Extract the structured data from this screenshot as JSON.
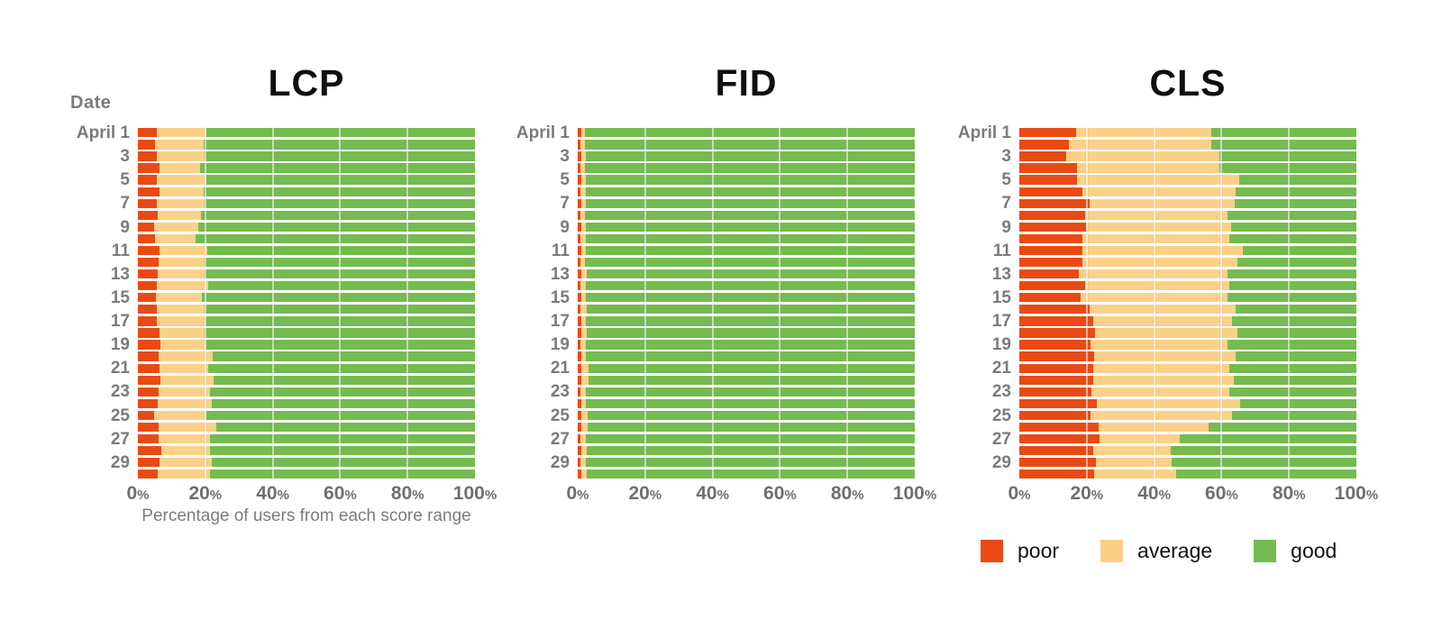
{
  "date_header": "Date",
  "axis": {
    "ticks": [
      "0",
      "20",
      "40",
      "60",
      "80",
      "100"
    ],
    "suffix": "%",
    "caption": "Percentage of users from each score range"
  },
  "legend": {
    "position": "bottom-right",
    "items": [
      {
        "label": "poor",
        "color": "#E94A13"
      },
      {
        "label": "average",
        "color": "#FBD189"
      },
      {
        "label": "good",
        "color": "#74BB50"
      }
    ]
  },
  "chart_data": [
    {
      "type": "bar",
      "stacked": true,
      "orientation": "horizontal",
      "title": "LCP",
      "xlabel": "Percentage of users from each score range",
      "ylabel": "Date",
      "xlim": [
        0,
        100
      ],
      "xticks": [
        0,
        20,
        40,
        60,
        80,
        100
      ],
      "grid": true,
      "categories": [
        "April 1",
        "",
        "3",
        "",
        "5",
        "",
        "7",
        "",
        "9",
        "",
        "11",
        "",
        "13",
        "",
        "15",
        "",
        "17",
        "",
        "19",
        "",
        "21",
        "",
        "23",
        "",
        "25",
        "",
        "27",
        "",
        "29",
        ""
      ],
      "series": [
        {
          "name": "poor",
          "values": [
            5.7,
            5.2,
            5.7,
            6.5,
            5.7,
            6.3,
            5.5,
            5.8,
            4.9,
            5.2,
            6.5,
            6.1,
            5.8,
            5.7,
            5.3,
            5.5,
            5.7,
            6.5,
            6.8,
            6.1,
            6.5,
            6.8,
            6.1,
            5.8,
            4.9,
            6.1,
            6.1,
            7.0,
            6.3,
            5.8
          ]
        },
        {
          "name": "average",
          "values": [
            14.7,
            14.3,
            14.2,
            11.9,
            14.7,
            13.2,
            14.4,
            13.0,
            13.0,
            11.9,
            14.1,
            13.6,
            14.1,
            15.1,
            13.7,
            14.4,
            14.4,
            13.4,
            13.3,
            16.1,
            14.3,
            15.6,
            15.2,
            16.1,
            15.5,
            17.1,
            15.2,
            14.4,
            15.6,
            15.5
          ]
        },
        {
          "name": "good",
          "values": [
            79.6,
            80.5,
            80.1,
            81.6,
            79.6,
            80.5,
            80.1,
            81.2,
            82.1,
            82.9,
            79.4,
            80.3,
            80.1,
            79.2,
            81.0,
            80.1,
            79.9,
            80.1,
            79.9,
            77.8,
            79.2,
            77.6,
            78.7,
            78.1,
            79.6,
            76.8,
            78.7,
            78.6,
            78.1,
            78.7
          ]
        }
      ]
    },
    {
      "type": "bar",
      "stacked": true,
      "orientation": "horizontal",
      "title": "FID",
      "ylabel": "Date",
      "xlim": [
        0,
        100
      ],
      "xticks": [
        0,
        20,
        40,
        60,
        80,
        100
      ],
      "grid": true,
      "categories": [
        "April 1",
        "",
        "3",
        "",
        "5",
        "",
        "7",
        "",
        "9",
        "",
        "11",
        "",
        "13",
        "",
        "15",
        "",
        "17",
        "",
        "19",
        "",
        "21",
        "",
        "23",
        "",
        "25",
        "",
        "27",
        "",
        "29",
        ""
      ],
      "series": [
        {
          "name": "poor",
          "values": [
            1.0,
            0.9,
            1.0,
            0.9,
            1.0,
            0.9,
            1.0,
            0.9,
            1.0,
            0.9,
            1.0,
            0.9,
            1.0,
            0.9,
            1.0,
            0.9,
            1.0,
            1.0,
            0.9,
            1.0,
            1.1,
            1.0,
            0.9,
            1.0,
            1.0,
            1.1,
            0.9,
            1.0,
            0.9,
            1.0
          ]
        },
        {
          "name": "average",
          "values": [
            1.2,
            1.3,
            1.5,
            1.2,
            1.4,
            1.6,
            1.3,
            1.2,
            1.5,
            1.4,
            1.3,
            1.2,
            1.6,
            1.4,
            1.5,
            1.7,
            1.4,
            1.8,
            1.4,
            1.5,
            2.0,
            2.2,
            1.5,
            1.4,
            2.0,
            1.8,
            1.6,
            1.7,
            1.5,
            1.6
          ]
        },
        {
          "name": "good",
          "values": [
            97.8,
            97.8,
            97.5,
            97.9,
            97.6,
            97.5,
            97.7,
            97.9,
            97.5,
            97.7,
            97.7,
            97.9,
            97.4,
            97.7,
            97.5,
            97.4,
            97.6,
            97.2,
            97.7,
            97.5,
            96.9,
            96.8,
            97.6,
            97.6,
            97.0,
            97.1,
            97.5,
            97.3,
            97.6,
            97.4
          ]
        }
      ]
    },
    {
      "type": "bar",
      "stacked": true,
      "orientation": "horizontal",
      "title": "CLS",
      "ylabel": "Date",
      "xlim": [
        0,
        100
      ],
      "xticks": [
        0,
        20,
        40,
        60,
        80,
        100
      ],
      "grid": true,
      "legend": [
        "poor",
        "average",
        "good"
      ],
      "categories": [
        "April 1",
        "",
        "3",
        "",
        "5",
        "",
        "7",
        "",
        "9",
        "",
        "11",
        "",
        "13",
        "",
        "15",
        "",
        "17",
        "",
        "19",
        "",
        "21",
        "",
        "23",
        "",
        "25",
        "",
        "27",
        "",
        "29",
        ""
      ],
      "series": [
        {
          "name": "poor",
          "values": [
            16.8,
            14.6,
            13.9,
            17.1,
            17.1,
            18.6,
            20.9,
            19.5,
            19.7,
            18.6,
            18.6,
            18.6,
            17.7,
            19.5,
            18.1,
            20.9,
            21.8,
            22.4,
            21.1,
            22.2,
            21.8,
            21.8,
            21.3,
            23.1,
            21.1,
            23.6,
            23.9,
            21.8,
            22.6,
            22.2
          ]
        },
        {
          "name": "average",
          "values": [
            40.2,
            42.4,
            45.4,
            42.2,
            48.2,
            45.6,
            43.1,
            42.3,
            43.1,
            43.7,
            47.8,
            46.2,
            44.1,
            42.8,
            43.7,
            43.3,
            41.2,
            42.2,
            40.7,
            42.0,
            40.5,
            41.9,
            41.0,
            42.4,
            42.1,
            32.6,
            23.6,
            23.1,
            22.6,
            24.2
          ]
        },
        {
          "name": "good",
          "values": [
            43.0,
            43.0,
            40.7,
            40.7,
            34.7,
            35.8,
            36.0,
            38.2,
            37.2,
            37.7,
            33.6,
            35.2,
            38.2,
            37.7,
            38.2,
            35.8,
            37.0,
            35.4,
            38.2,
            35.8,
            37.7,
            36.3,
            37.7,
            34.5,
            36.8,
            43.8,
            52.5,
            55.1,
            54.8,
            53.6
          ]
        }
      ]
    }
  ]
}
